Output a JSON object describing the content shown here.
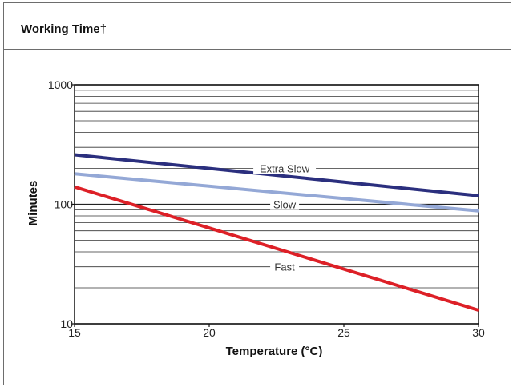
{
  "header": {
    "title": "Working Time†"
  },
  "chart_data": {
    "type": "line",
    "title": "Working Time†",
    "xlabel": "Temperature (°C)",
    "ylabel": "Minutes",
    "xlim": [
      15,
      30
    ],
    "ylim": [
      10,
      1000
    ],
    "y_scale": "log",
    "x_ticks": [
      15,
      20,
      25,
      30
    ],
    "x_tick_labels": [
      "15",
      "20",
      "25",
      "30"
    ],
    "y_ticks": [
      10,
      100,
      1000
    ],
    "y_tick_labels": [
      "10",
      "100",
      "1000"
    ],
    "grid": "horizontal",
    "series": [
      {
        "name": "Extra Slow",
        "color": "#2b2f7e",
        "x": [
          15,
          30
        ],
        "y": [
          260,
          118
        ],
        "label_at": [
          22.8,
          200
        ]
      },
      {
        "name": "Slow",
        "color": "#94a8d6",
        "x": [
          15,
          30
        ],
        "y": [
          180,
          88
        ],
        "label_at": [
          22.8,
          100
        ]
      },
      {
        "name": "Fast",
        "color": "#dd2027",
        "x": [
          15,
          30
        ],
        "y": [
          140,
          13
        ],
        "label_at": [
          22.8,
          30
        ]
      }
    ]
  }
}
